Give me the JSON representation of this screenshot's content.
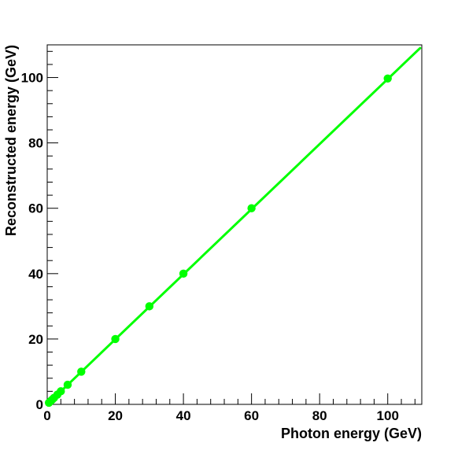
{
  "chart_data": {
    "type": "scatter",
    "title": "",
    "xlabel": "Photon energy (GeV)",
    "ylabel": "Reconstructed energy (GeV)",
    "xlim": [
      0,
      110
    ],
    "ylim": [
      0,
      110
    ],
    "x_ticks": [
      0,
      20,
      40,
      60,
      80,
      100
    ],
    "y_ticks": [
      0,
      20,
      40,
      60,
      80,
      100
    ],
    "x_tick_labels": [
      "0",
      "20",
      "40",
      "60",
      "80",
      "100"
    ],
    "y_tick_labels": [
      "0",
      "20",
      "40",
      "60",
      "80",
      "100"
    ],
    "grid": false,
    "legend": false,
    "series": [
      {
        "style": "markers",
        "color": "#00ff00",
        "points": [
          {
            "x": 0.5,
            "y": 0.5
          },
          {
            "x": 1,
            "y": 1
          },
          {
            "x": 1.5,
            "y": 1.5
          },
          {
            "x": 2,
            "y": 2
          },
          {
            "x": 3,
            "y": 3
          },
          {
            "x": 4,
            "y": 4
          },
          {
            "x": 6,
            "y": 6
          },
          {
            "x": 10,
            "y": 10
          },
          {
            "x": 20,
            "y": 20
          },
          {
            "x": 30,
            "y": 30
          },
          {
            "x": 40,
            "y": 40
          },
          {
            "x": 60,
            "y": 60
          },
          {
            "x": 100,
            "y": 99.7
          }
        ]
      },
      {
        "style": "fit-line",
        "color": "#00ff00",
        "points": [
          {
            "x": 0,
            "y": 0
          },
          {
            "x": 109.5,
            "y": 109
          }
        ]
      }
    ]
  }
}
